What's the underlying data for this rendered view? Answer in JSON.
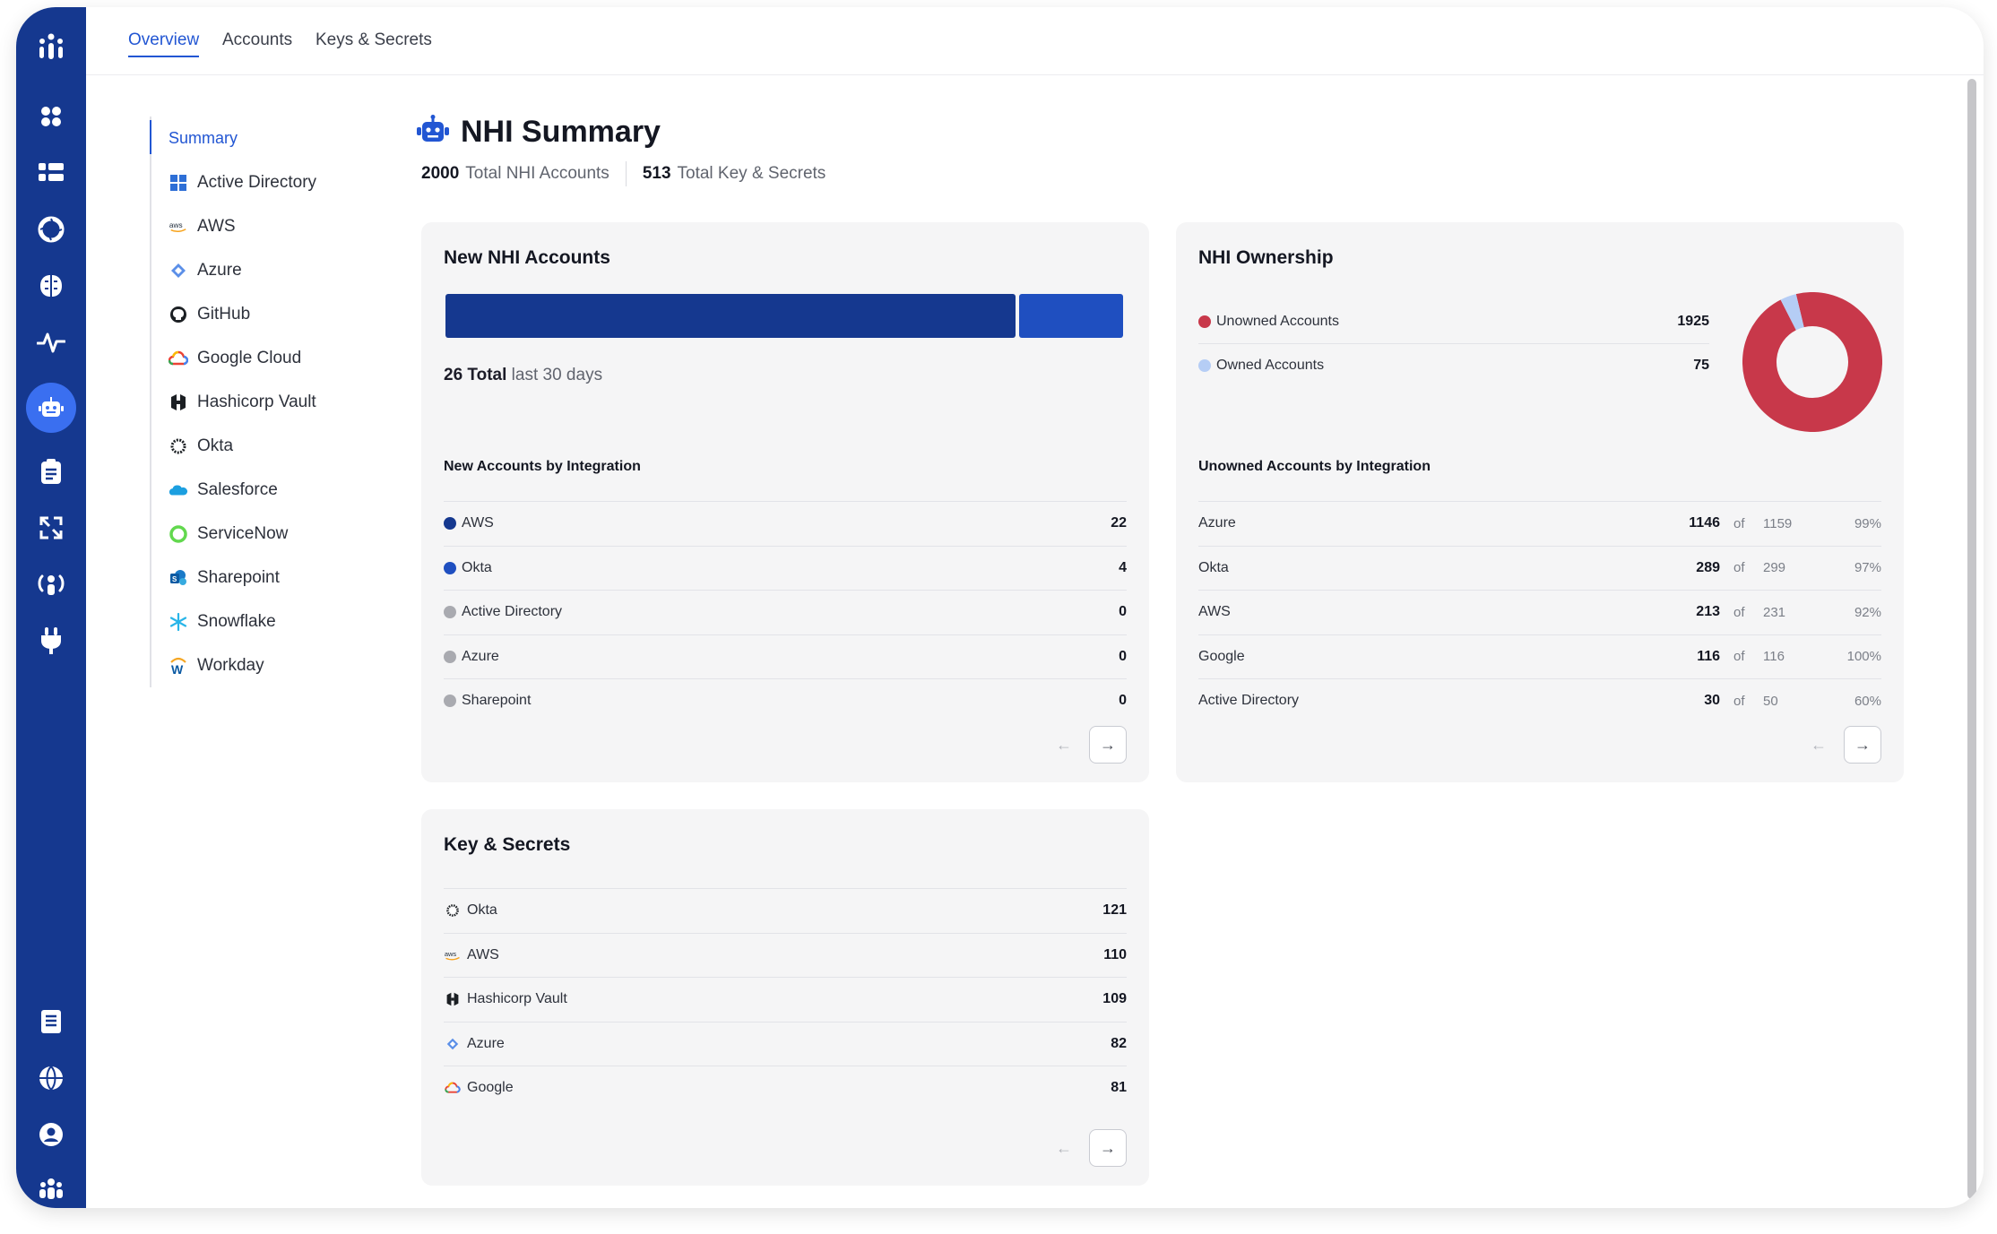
{
  "tabs": [
    {
      "label": "Overview"
    },
    {
      "label": "Accounts"
    },
    {
      "label": "Keys & Secrets"
    }
  ],
  "subnav": [
    {
      "label": "Summary",
      "icon": "none"
    },
    {
      "label": "Active Directory",
      "icon": "windows-icon"
    },
    {
      "label": "AWS",
      "icon": "aws-icon"
    },
    {
      "label": "Azure",
      "icon": "azure-icon"
    },
    {
      "label": "GitHub",
      "icon": "github-icon"
    },
    {
      "label": "Google Cloud",
      "icon": "google-cloud-icon"
    },
    {
      "label": "Hashicorp Vault",
      "icon": "hashicorp-icon"
    },
    {
      "label": "Okta",
      "icon": "okta-icon"
    },
    {
      "label": "Salesforce",
      "icon": "salesforce-icon"
    },
    {
      "label": "ServiceNow",
      "icon": "servicenow-icon"
    },
    {
      "label": "Sharepoint",
      "icon": "sharepoint-icon"
    },
    {
      "label": "Snowflake",
      "icon": "snowflake-icon"
    },
    {
      "label": "Workday",
      "icon": "workday-icon"
    }
  ],
  "header": {
    "title": "NHI Summary",
    "stat1_value": "2000",
    "stat1_label": "Total NHI Accounts",
    "stat2_value": "513",
    "stat2_label": "Total Key & Secrets"
  },
  "new_accounts": {
    "title": "New NHI Accounts",
    "total_value": "26 Total",
    "total_label": "last 30 days",
    "section": "New Accounts by Integration",
    "bar_segments": [
      {
        "name": "AWS",
        "value": 22,
        "color": "#15388f"
      },
      {
        "name": "Okta",
        "value": 4,
        "color": "#1f4fc0"
      }
    ],
    "rows": [
      {
        "name": "AWS",
        "value": "22",
        "color": "#15388f"
      },
      {
        "name": "Okta",
        "value": "4",
        "color": "#1f4fc0"
      },
      {
        "name": "Active Directory",
        "value": "0",
        "color": "#a9aab0"
      },
      {
        "name": "Azure",
        "value": "0",
        "color": "#a9aab0"
      },
      {
        "name": "Sharepoint",
        "value": "0",
        "color": "#a9aab0"
      }
    ]
  },
  "ownership": {
    "title": "NHI Ownership",
    "legend": [
      {
        "name": "Unowned Accounts",
        "value": "1925",
        "color": "#c8384a"
      },
      {
        "name": "Owned Accounts",
        "value": "75",
        "color": "#b5cdf5"
      }
    ],
    "section": "Unowned Accounts by Integration",
    "of_label": "of",
    "rows": [
      {
        "name": "Azure",
        "value": "1146",
        "total": "1159",
        "pct": "99%"
      },
      {
        "name": "Okta",
        "value": "289",
        "total": "299",
        "pct": "97%"
      },
      {
        "name": "AWS",
        "value": "213",
        "total": "231",
        "pct": "92%"
      },
      {
        "name": "Google",
        "value": "116",
        "total": "116",
        "pct": "100%"
      },
      {
        "name": "Active Directory",
        "value": "30",
        "total": "50",
        "pct": "60%"
      }
    ]
  },
  "keys": {
    "title": "Key & Secrets",
    "rows": [
      {
        "name": "Okta",
        "value": "121",
        "icon": "okta-icon"
      },
      {
        "name": "AWS",
        "value": "110",
        "icon": "aws-icon"
      },
      {
        "name": "Hashicorp Vault",
        "value": "109",
        "icon": "hashicorp-icon"
      },
      {
        "name": "Azure",
        "value": "82",
        "icon": "azure-icon"
      },
      {
        "name": "Google",
        "value": "81",
        "icon": "google-cloud-icon"
      }
    ]
  },
  "colors": {
    "rail": "#15388f",
    "accent": "#2256d3",
    "unowned": "#c8384a",
    "owned": "#b5cdf5"
  }
}
